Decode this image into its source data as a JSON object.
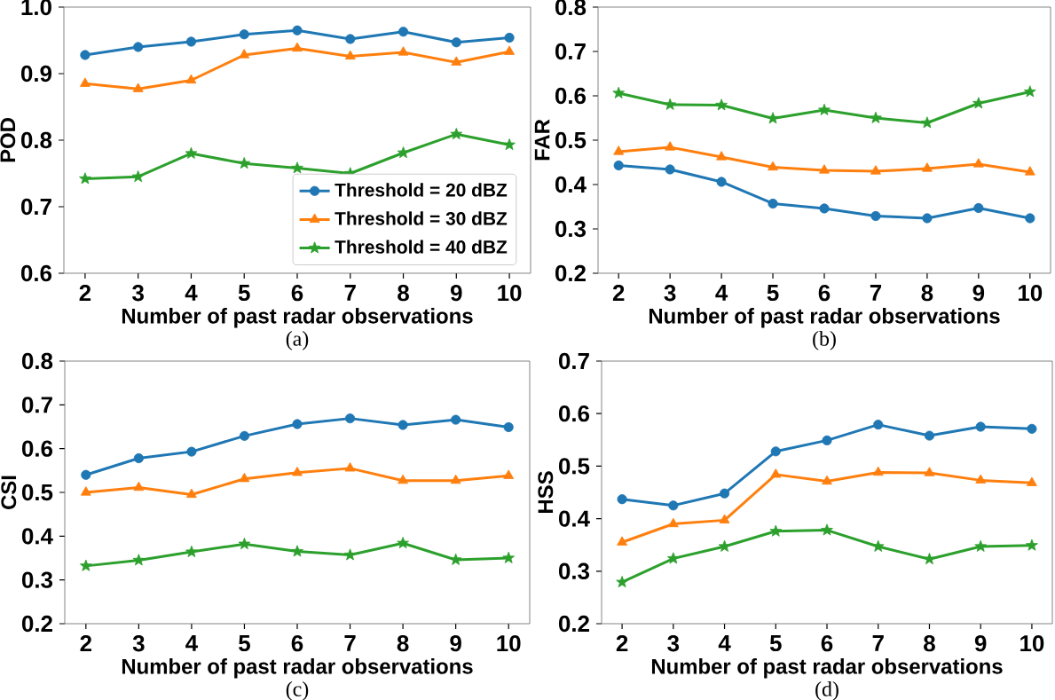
{
  "chart_data": [
    {
      "type": "line",
      "xlabel": "Number of past radar observations",
      "ylabel": "POD",
      "annotations": [
        "(a)"
      ],
      "x": [
        2,
        3,
        4,
        5,
        6,
        7,
        8,
        9,
        10
      ],
      "xlim": [
        1.6,
        10.4
      ],
      "xticks": [
        2,
        3,
        4,
        5,
        6,
        7,
        8,
        9,
        10
      ],
      "ylim": [
        0.6,
        1.0
      ],
      "yticks": [
        0.6,
        0.7,
        0.8,
        0.9,
        {
          "value": 1.0,
          "label": "1.0"
        }
      ],
      "legend": "bottom right",
      "line_style": "solid",
      "series": [
        {
          "name": "Threshold = 20 dBZ",
          "color": "#1f77b4",
          "marker": "circle",
          "values": [
            0.928,
            0.94,
            0.948,
            0.959,
            0.965,
            0.952,
            0.963,
            0.947,
            0.954
          ]
        },
        {
          "name": "Threshold = 30 dBZ",
          "color": "#ff7f0e",
          "marker": "triangle",
          "values": [
            0.885,
            0.877,
            0.89,
            0.928,
            0.938,
            0.926,
            0.932,
            0.917,
            0.933
          ]
        },
        {
          "name": "Threshold = 40 dBZ",
          "color": "#2ca02c",
          "marker": "star",
          "values": [
            0.742,
            0.745,
            0.78,
            0.765,
            0.758,
            0.75,
            0.781,
            0.809,
            0.793
          ]
        }
      ]
    },
    {
      "type": "line",
      "xlabel": "Number of past radar observations",
      "ylabel": "FAR",
      "annotations": [
        "(b)"
      ],
      "x": [
        2,
        3,
        4,
        5,
        6,
        7,
        8,
        9,
        10
      ],
      "xlim": [
        1.6,
        10.4
      ],
      "xticks": [
        2,
        3,
        4,
        5,
        6,
        7,
        8,
        9,
        10
      ],
      "ylim": [
        0.2,
        0.8
      ],
      "yticks": [
        0.2,
        0.3,
        0.4,
        0.5,
        0.6,
        0.7,
        0.8
      ],
      "line_style": "solid",
      "series": [
        {
          "color": "#1f77b4",
          "marker": "circle",
          "values": [
            0.443,
            0.434,
            0.406,
            0.357,
            0.346,
            0.329,
            0.324,
            0.347,
            0.324
          ]
        },
        {
          "color": "#ff7f0e",
          "marker": "triangle",
          "values": [
            0.474,
            0.484,
            0.462,
            0.439,
            0.432,
            0.43,
            0.436,
            0.446,
            0.428
          ]
        },
        {
          "color": "#2ca02c",
          "marker": "star",
          "values": [
            0.606,
            0.58,
            0.579,
            0.549,
            0.568,
            0.55,
            0.539,
            0.583,
            0.609
          ]
        }
      ]
    },
    {
      "type": "line",
      "xlabel": "Number of past radar observations",
      "ylabel": "CSI",
      "annotations": [
        "(c)"
      ],
      "x": [
        2,
        3,
        4,
        5,
        6,
        7,
        8,
        9,
        10
      ],
      "xlim": [
        1.6,
        10.4
      ],
      "xticks": [
        2,
        3,
        4,
        5,
        6,
        7,
        8,
        9,
        10
      ],
      "ylim": [
        0.2,
        0.8
      ],
      "yticks": [
        0.2,
        0.3,
        0.4,
        0.5,
        0.6,
        0.7,
        0.8
      ],
      "line_style": "solid",
      "series": [
        {
          "color": "#1f77b4",
          "marker": "circle",
          "values": [
            0.54,
            0.578,
            0.593,
            0.629,
            0.656,
            0.669,
            0.654,
            0.666,
            0.649
          ]
        },
        {
          "color": "#ff7f0e",
          "marker": "triangle",
          "values": [
            0.5,
            0.511,
            0.495,
            0.531,
            0.545,
            0.555,
            0.527,
            0.527,
            0.538
          ]
        },
        {
          "color": "#2ca02c",
          "marker": "star",
          "values": [
            0.332,
            0.345,
            0.364,
            0.382,
            0.365,
            0.357,
            0.384,
            0.346,
            0.35
          ]
        }
      ]
    },
    {
      "type": "line",
      "xlabel": "Number of past radar observations",
      "ylabel": "HSS",
      "annotations": [
        "(d)"
      ],
      "x": [
        2,
        3,
        4,
        5,
        6,
        7,
        8,
        9,
        10
      ],
      "xlim": [
        1.6,
        10.4
      ],
      "xticks": [
        2,
        3,
        4,
        5,
        6,
        7,
        8,
        9,
        10
      ],
      "ylim": [
        0.2,
        0.7
      ],
      "yticks": [
        0.2,
        0.3,
        0.4,
        0.5,
        0.6,
        0.7
      ],
      "line_style": "solid",
      "series": [
        {
          "color": "#1f77b4",
          "marker": "circle",
          "values": [
            0.437,
            0.425,
            0.448,
            0.528,
            0.549,
            0.579,
            0.558,
            0.575,
            0.571
          ]
        },
        {
          "color": "#ff7f0e",
          "marker": "triangle",
          "values": [
            0.355,
            0.39,
            0.397,
            0.484,
            0.471,
            0.488,
            0.487,
            0.473,
            0.468
          ]
        },
        {
          "color": "#2ca02c",
          "marker": "star",
          "values": [
            0.279,
            0.324,
            0.347,
            0.376,
            0.378,
            0.347,
            0.323,
            0.347,
            0.349
          ]
        }
      ]
    }
  ]
}
